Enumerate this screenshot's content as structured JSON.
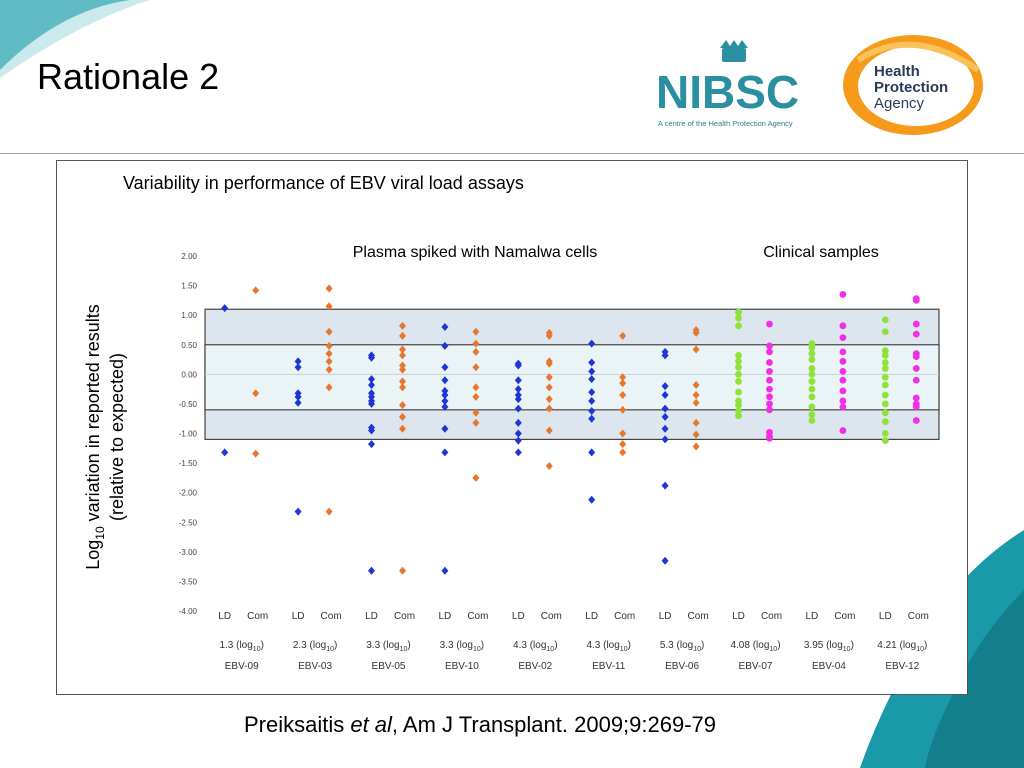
{
  "slide": {
    "title": "Rationale 2",
    "citation": {
      "author": "Preiksaitis ",
      "etal": "et al",
      "rest": ", Am J Transplant. 2009;9:269-79"
    }
  },
  "logos": {
    "nibsc": {
      "name": "NIBSC",
      "tagline": "A centre of the Health Protection Agency"
    },
    "hpa": {
      "line1": "Health",
      "line2": "Protection",
      "line3": "Agency"
    }
  },
  "colors": {
    "ld_spiked": "#1e35d8",
    "com_spiked": "#e8772e",
    "ld_clinical": "#8ee23a",
    "com_clinical": "#f02fe6",
    "band": "#dde6ee",
    "teal": "#1a9aa8"
  },
  "chart_data": {
    "type": "scatter",
    "title": "Variability in performance of EBV viral load assays",
    "ylabel_prefix": "Log",
    "ylabel_sub": "10",
    "ylabel_line1": " variation in reported results",
    "ylabel_line2": "(relative to expected)",
    "ylim": [
      -4.0,
      2.0
    ],
    "yticks": [
      "2.00",
      "1.50",
      "1.00",
      "0.50",
      "0.00",
      "-0.50",
      "-1.00",
      "-1.50",
      "-2.00",
      "-2.50",
      "-3.00",
      "-3.50",
      "-4.00"
    ],
    "bands": [
      [
        -1.1,
        1.1
      ],
      [
        -0.6,
        0.5
      ]
    ],
    "group_labels": {
      "spiked": "Plasma spiked with Namalwa cells",
      "clinical": "Clinical samples"
    },
    "series_labels": {
      "ld": "LD",
      "com": "Com"
    },
    "samples": [
      {
        "name": "EBV-09",
        "conc": "1.3",
        "type": "spiked",
        "ld": [
          1.12,
          -1.32
        ],
        "com": [
          1.42,
          -0.32,
          -1.34
        ]
      },
      {
        "name": "EBV-03",
        "conc": "2.3",
        "type": "spiked",
        "ld": [
          0.22,
          0.12,
          -0.32,
          -0.38,
          -0.48,
          -2.32
        ],
        "com": [
          1.45,
          1.15,
          0.72,
          0.48,
          0.35,
          0.22,
          0.08,
          -0.22,
          -2.32
        ]
      },
      {
        "name": "EBV-05",
        "conc": "3.3",
        "type": "spiked",
        "ld": [
          0.32,
          0.28,
          -0.08,
          -0.18,
          -0.32,
          -0.38,
          -0.45,
          -0.5,
          -0.9,
          -0.95,
          -1.18,
          -3.32
        ],
        "com": [
          0.82,
          0.65,
          0.42,
          0.32,
          0.15,
          0.08,
          -0.12,
          -0.22,
          -0.52,
          -0.72,
          -0.92,
          -3.32
        ]
      },
      {
        "name": "EBV-10",
        "conc": "3.3",
        "type": "spiked",
        "ld": [
          0.8,
          0.48,
          0.12,
          -0.1,
          -0.28,
          -0.35,
          -0.45,
          -0.55,
          -0.92,
          -1.32,
          -3.32
        ],
        "com": [
          0.72,
          0.52,
          0.38,
          0.12,
          -0.22,
          -0.38,
          -0.65,
          -0.82,
          -1.75
        ]
      },
      {
        "name": "EBV-02",
        "conc": "4.3",
        "type": "spiked",
        "ld": [
          0.18,
          0.15,
          -0.1,
          -0.25,
          -0.35,
          -0.42,
          -0.58,
          -0.82,
          -1.0,
          -1.12,
          -1.32
        ],
        "com": [
          0.7,
          0.65,
          0.22,
          0.18,
          -0.05,
          -0.22,
          -0.42,
          -0.58,
          -0.95,
          -1.55
        ]
      },
      {
        "name": "EBV-11",
        "conc": "4.3",
        "type": "spiked",
        "ld": [
          0.52,
          0.2,
          0.05,
          -0.08,
          -0.3,
          -0.45,
          -0.62,
          -0.75,
          -1.32,
          -2.12
        ],
        "com": [
          0.65,
          -0.05,
          -0.15,
          -0.35,
          -0.6,
          -1.0,
          -1.18,
          -1.32
        ]
      },
      {
        "name": "EBV-06",
        "conc": "5.3",
        "type": "spiked",
        "ld": [
          0.38,
          0.32,
          -0.2,
          -0.35,
          -0.58,
          -0.72,
          -0.92,
          -1.1,
          -1.88,
          -3.15
        ],
        "com": [
          0.75,
          0.7,
          0.42,
          -0.18,
          -0.35,
          -0.48,
          -0.82,
          -1.02,
          -1.22
        ]
      },
      {
        "name": "EBV-07",
        "conc": "4.08",
        "type": "clinical",
        "ld": [
          1.05,
          0.95,
          0.82,
          0.32,
          0.22,
          0.12,
          0.0,
          -0.12,
          -0.3,
          -0.45,
          -0.52,
          -0.62,
          -0.7
        ],
        "com": [
          0.85,
          0.48,
          0.38,
          0.2,
          0.05,
          -0.1,
          -0.25,
          -0.38,
          -0.5,
          -0.6,
          -0.98,
          -1.05,
          -1.08
        ]
      },
      {
        "name": "EBV-04",
        "conc": "3.95",
        "type": "clinical",
        "ld": [
          0.52,
          0.45,
          0.35,
          0.25,
          0.1,
          0.0,
          -0.12,
          -0.25,
          -0.38,
          -0.55,
          -0.68,
          -0.78
        ],
        "com": [
          1.35,
          0.82,
          0.62,
          0.38,
          0.22,
          0.05,
          -0.1,
          -0.28,
          -0.45,
          -0.55,
          -0.95
        ]
      },
      {
        "name": "EBV-12",
        "conc": "4.21",
        "type": "clinical",
        "ld": [
          0.92,
          0.72,
          0.4,
          0.32,
          0.2,
          0.1,
          -0.05,
          -0.18,
          -0.35,
          -0.5,
          -0.65,
          -0.8,
          -1.0,
          -1.12
        ],
        "com": [
          1.28,
          1.25,
          0.85,
          0.68,
          0.35,
          0.3,
          0.1,
          -0.1,
          -0.4,
          -0.5,
          -0.55,
          -0.78
        ]
      }
    ]
  }
}
